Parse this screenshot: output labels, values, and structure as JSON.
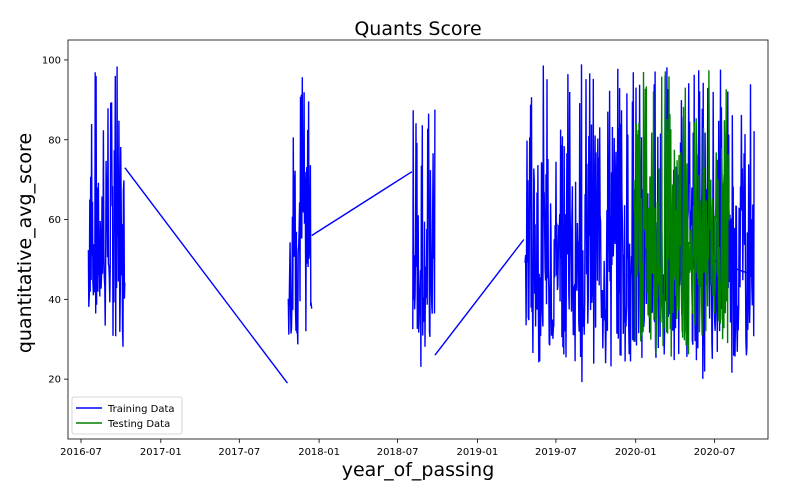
{
  "chart_data": {
    "type": "line",
    "title": "Quants Score",
    "xlabel": "year_of_passing",
    "ylabel": "quantitative_avg_score",
    "x_axis_type": "date",
    "xlim": [
      "2016-06-01",
      "2020-11-01"
    ],
    "ylim": [
      5,
      105
    ],
    "x_ticks": [
      "2016-07",
      "2017-01",
      "2017-07",
      "2018-01",
      "2018-07",
      "2019-01",
      "2019-07",
      "2020-01",
      "2020-07"
    ],
    "y_ticks": [
      20,
      40,
      60,
      80,
      100
    ],
    "grid": false,
    "legend": {
      "position": "lower-left",
      "entries": [
        "Training Data",
        "Testing Data"
      ]
    },
    "series": [
      {
        "name": "Training Data",
        "color": "#0000ff",
        "clusters": [
          {
            "start": "2016-07-18",
            "end": "2016-10-10",
            "min": 18,
            "max": 99
          },
          {
            "start": "2017-10-22",
            "end": "2017-12-15",
            "min": 14,
            "max": 98
          },
          {
            "start": "2018-08-05",
            "end": "2018-09-25",
            "min": 15,
            "max": 90
          },
          {
            "start": "2019-04-20",
            "end": "2020-09-30",
            "min": 11,
            "max": 99
          }
        ],
        "connectors": [
          {
            "x": [
              "2016-10-10",
              "2017-10-20"
            ],
            "y": [
              73,
              19
            ]
          },
          {
            "x": [
              "2017-12-15",
              "2018-08-03"
            ],
            "y": [
              56,
              72
            ]
          },
          {
            "x": [
              "2018-09-25",
              "2019-04-18"
            ],
            "y": [
              26,
              55
            ]
          },
          {
            "x": [
              "2020-05-01",
              "2020-09-30"
            ],
            "y": [
              52,
              46
            ]
          }
        ]
      },
      {
        "name": "Testing Data",
        "color": "#008000",
        "clusters": [
          {
            "start": "2019-12-28",
            "end": "2020-08-05",
            "min": 16,
            "max": 98
          }
        ],
        "connectors": []
      }
    ]
  },
  "colors": {
    "training": "#0000ff",
    "testing": "#008000",
    "axes": "#000000"
  }
}
